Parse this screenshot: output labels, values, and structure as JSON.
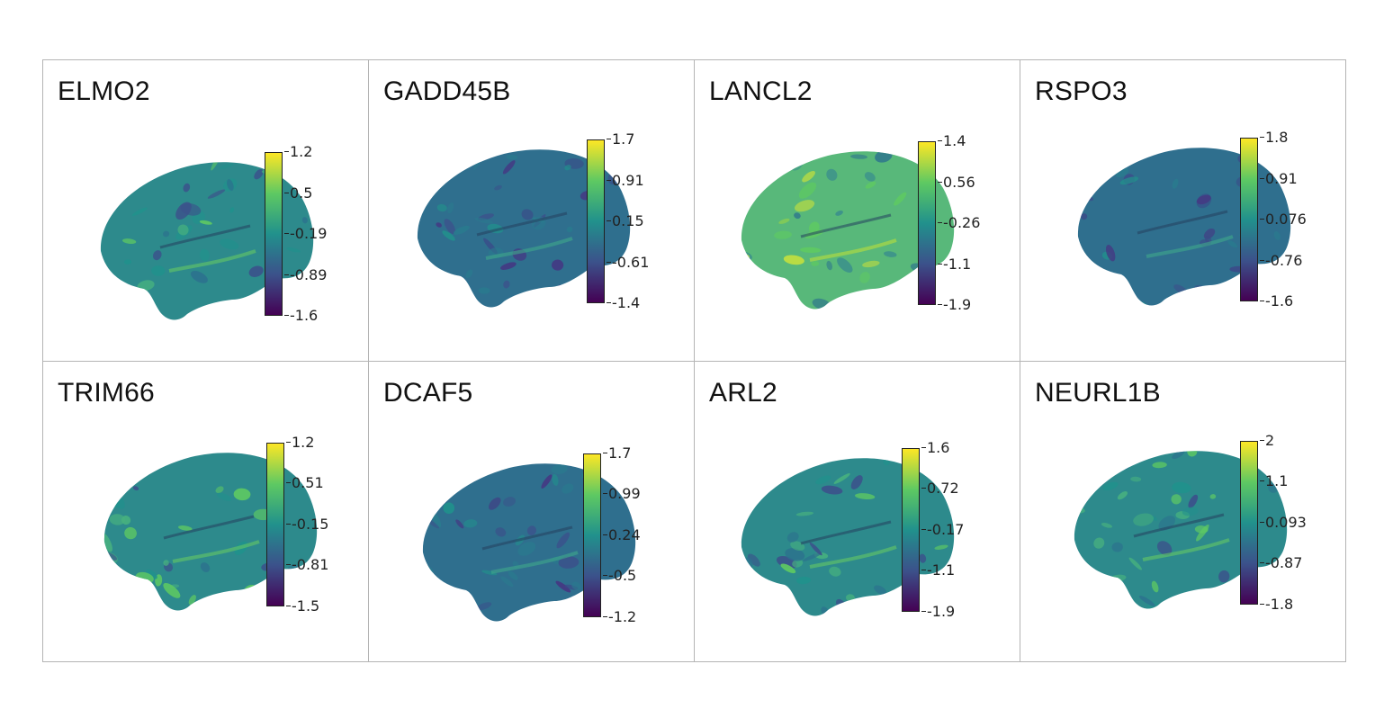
{
  "panels": [
    {
      "gene": "ELMO2",
      "ticks": [
        "1.2",
        "0.5",
        "-0.19",
        "-0.89",
        "-1.6"
      ],
      "brain_tone": "mid"
    },
    {
      "gene": "GADD45B",
      "ticks": [
        "1.7",
        "0.91",
        "0.15",
        "-0.61",
        "-1.4"
      ],
      "brain_tone": "dark"
    },
    {
      "gene": "LANCL2",
      "ticks": [
        "1.4",
        "0.56",
        "-0.26",
        "-1.1",
        "-1.9"
      ],
      "brain_tone": "bright"
    },
    {
      "gene": "RSPO3",
      "ticks": [
        "1.8",
        "0.91",
        "0.076",
        "-0.76",
        "-1.6"
      ],
      "brain_tone": "dark"
    },
    {
      "gene": "TRIM66",
      "ticks": [
        "1.2",
        "0.51",
        "-0.15",
        "-0.81",
        "-1.5"
      ],
      "brain_tone": "mid"
    },
    {
      "gene": "DCAF5",
      "ticks": [
        "1.7",
        "0.99",
        "0.24",
        "-0.5",
        "-1.2"
      ],
      "brain_tone": "dark"
    },
    {
      "gene": "ARL2",
      "ticks": [
        "1.6",
        "0.72",
        "-0.17",
        "-1.1",
        "-1.9"
      ],
      "brain_tone": "mid"
    },
    {
      "gene": "NEURL1B",
      "ticks": [
        "2",
        "1.1",
        "0.093",
        "-0.87",
        "-1.8"
      ],
      "brain_tone": "mid"
    }
  ],
  "colormap": [
    "#440154",
    "#3b528b",
    "#21918c",
    "#5ec962",
    "#fde725"
  ],
  "border_color": "#b4b4b4"
}
